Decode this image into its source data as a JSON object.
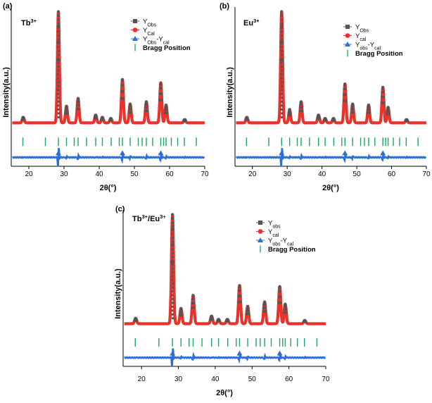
{
  "figure": {
    "description_note": "XRD Rietveld refinement panels"
  },
  "colors": {
    "obs": "#555555",
    "cal": "#e8322b",
    "diff": "#2d6fd0",
    "bragg": "#1fa55f",
    "axis": "#000000"
  },
  "chart_data": [
    {
      "type": "line",
      "panel_label": "(a)",
      "sample": {
        "base": "Tb",
        "sup": "3+"
      },
      "xlabel": "2θ(°)",
      "ylabel": "Intensity(a.u.)",
      "xlim": [
        15,
        70
      ],
      "xticks": [
        20,
        30,
        40,
        50,
        60,
        70
      ],
      "ylim": [
        -0.35,
        1.08
      ],
      "legend_position": "top-right",
      "legend": [
        {
          "base": "Y",
          "sub": "Obs",
          "marker": "square"
        },
        {
          "base": "Y",
          "sub": "Cal",
          "marker": "circle"
        },
        {
          "base": "Y",
          "sub": "Obs",
          "mid": "-Y",
          "sub2": "cal",
          "marker": "triangle"
        },
        {
          "text": "Bragg Position",
          "marker": "bar"
        }
      ],
      "baseline": 0.04,
      "diff_level": -0.27,
      "bragg_level": -0.13,
      "peaks": [
        {
          "x": 18.4,
          "h": 0.05
        },
        {
          "x": 28.4,
          "h": 1.0
        },
        {
          "x": 30.7,
          "h": 0.15
        },
        {
          "x": 34.0,
          "h": 0.22
        },
        {
          "x": 39.0,
          "h": 0.07
        },
        {
          "x": 40.9,
          "h": 0.05
        },
        {
          "x": 43.3,
          "h": 0.04
        },
        {
          "x": 46.6,
          "h": 0.39
        },
        {
          "x": 48.8,
          "h": 0.17
        },
        {
          "x": 53.4,
          "h": 0.19
        },
        {
          "x": 57.5,
          "h": 0.36
        },
        {
          "x": 59.0,
          "h": 0.16
        },
        {
          "x": 64.3,
          "h": 0.03
        }
      ],
      "bragg": [
        18.3,
        24.7,
        28.4,
        30.7,
        32.9,
        34.0,
        36.4,
        39.0,
        40.9,
        43.4,
        45.7,
        46.6,
        48.8,
        51.1,
        52.2,
        53.4,
        55.2,
        57.5,
        58.3,
        59.0,
        60.5,
        62.3,
        64.2,
        67.6
      ]
    },
    {
      "type": "line",
      "panel_label": "(b)",
      "sample": {
        "base": "Eu",
        "sup": "3+"
      },
      "xlabel": "2θ(°)",
      "ylabel": "Intensity(a.u.)",
      "xlim": [
        15,
        70
      ],
      "xticks": [
        20,
        30,
        40,
        50,
        60,
        70
      ],
      "ylim": [
        -0.35,
        1.08
      ],
      "legend_position": "top-right",
      "legend": [
        {
          "base": "Y",
          "sub": "Obs",
          "marker": "square"
        },
        {
          "base": "Y",
          "sub": "cal",
          "marker": "circle"
        },
        {
          "base": "Y",
          "sub": "obs",
          "mid": "-Y",
          "sub2": "cal",
          "marker": "triangle"
        },
        {
          "text": "Bragg Position",
          "marker": "bar"
        }
      ],
      "baseline": 0.04,
      "diff_level": -0.27,
      "bragg_level": -0.13,
      "peaks": [
        {
          "x": 18.4,
          "h": 0.05
        },
        {
          "x": 28.4,
          "h": 1.0
        },
        {
          "x": 30.7,
          "h": 0.12
        },
        {
          "x": 34.0,
          "h": 0.19
        },
        {
          "x": 39.0,
          "h": 0.07
        },
        {
          "x": 40.9,
          "h": 0.04
        },
        {
          "x": 43.3,
          "h": 0.04
        },
        {
          "x": 46.6,
          "h": 0.35
        },
        {
          "x": 48.8,
          "h": 0.17
        },
        {
          "x": 53.4,
          "h": 0.16
        },
        {
          "x": 57.5,
          "h": 0.32
        },
        {
          "x": 59.0,
          "h": 0.14
        },
        {
          "x": 64.3,
          "h": 0.03
        }
      ],
      "bragg": [
        18.3,
        24.7,
        28.4,
        30.7,
        32.9,
        34.0,
        36.4,
        39.0,
        40.9,
        43.4,
        45.7,
        46.6,
        48.8,
        51.1,
        52.2,
        53.4,
        55.2,
        57.5,
        58.3,
        59.0,
        60.5,
        62.3,
        64.2,
        67.6
      ]
    },
    {
      "type": "line",
      "panel_label": "(c)",
      "sample": {
        "base": "Tb",
        "sup": "3+",
        "mid": "/Eu",
        "sup2": "3+"
      },
      "xlabel": "2θ(°)",
      "ylabel": "Intensity(a.u.)",
      "xlim": [
        15,
        70
      ],
      "xticks": [
        20,
        30,
        40,
        50,
        60,
        70
      ],
      "ylim": [
        -0.35,
        1.08
      ],
      "legend_position": "top-right",
      "legend": [
        {
          "base": "Y",
          "sub": "obs",
          "marker": "square"
        },
        {
          "base": "Y",
          "sub": "cal",
          "marker": "circle"
        },
        {
          "base": "Y",
          "sub": "obs",
          "mid": "-Y",
          "sub2": "cal",
          "marker": "triangle"
        },
        {
          "text": "Bragg Position",
          "marker": "bar"
        }
      ],
      "baseline": 0.04,
      "diff_level": -0.27,
      "bragg_level": -0.13,
      "peaks": [
        {
          "x": 18.4,
          "h": 0.05
        },
        {
          "x": 28.4,
          "h": 1.0
        },
        {
          "x": 30.7,
          "h": 0.14
        },
        {
          "x": 34.0,
          "h": 0.26
        },
        {
          "x": 39.0,
          "h": 0.07
        },
        {
          "x": 40.9,
          "h": 0.04
        },
        {
          "x": 43.3,
          "h": 0.04
        },
        {
          "x": 46.6,
          "h": 0.35
        },
        {
          "x": 48.8,
          "h": 0.16
        },
        {
          "x": 53.4,
          "h": 0.2
        },
        {
          "x": 57.5,
          "h": 0.34
        },
        {
          "x": 59.0,
          "h": 0.18
        },
        {
          "x": 64.3,
          "h": 0.03
        }
      ],
      "bragg": [
        18.3,
        24.7,
        28.4,
        30.7,
        32.9,
        34.0,
        36.4,
        39.0,
        40.9,
        43.4,
        45.7,
        46.6,
        48.8,
        51.1,
        52.2,
        53.4,
        55.2,
        57.5,
        58.3,
        59.0,
        60.5,
        62.3,
        64.2,
        67.6
      ]
    }
  ]
}
